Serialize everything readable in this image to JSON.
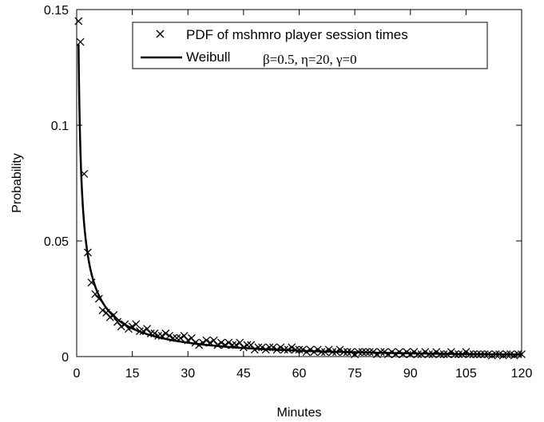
{
  "chart_data": {
    "type": "scatter",
    "xlabel": "Minutes",
    "ylabel": "Probability",
    "xlim": [
      0,
      120
    ],
    "ylim": [
      0,
      0.15
    ],
    "xticks": [
      0,
      15,
      30,
      45,
      60,
      75,
      90,
      105,
      120
    ],
    "yticks": [
      {
        "value": 0,
        "label": "0"
      },
      {
        "value": 0.05,
        "label": "0.05"
      },
      {
        "value": 0.1,
        "label": "0.1"
      },
      {
        "value": 0.15,
        "label": "0.15"
      }
    ],
    "grid": false,
    "legend_position": "top-right",
    "series": [
      {
        "name": "PDF of mshmro player session times",
        "style": "x-marker",
        "points": [
          [
            0.5,
            0.145
          ],
          [
            1,
            0.136
          ],
          [
            2,
            0.079
          ],
          [
            3,
            0.045
          ],
          [
            4,
            0.032
          ],
          [
            5,
            0.027
          ],
          [
            6,
            0.025
          ],
          [
            7,
            0.02
          ],
          [
            8,
            0.019
          ],
          [
            9,
            0.017
          ],
          [
            10,
            0.018
          ],
          [
            11,
            0.015
          ],
          [
            12,
            0.013
          ],
          [
            13,
            0.014
          ],
          [
            14,
            0.012
          ],
          [
            15,
            0.013
          ],
          [
            16,
            0.014
          ],
          [
            17,
            0.011
          ],
          [
            18,
            0.011
          ],
          [
            19,
            0.012
          ],
          [
            20,
            0.01
          ],
          [
            21,
            0.01
          ],
          [
            22,
            0.009
          ],
          [
            23,
            0.009
          ],
          [
            24,
            0.01
          ],
          [
            25,
            0.009
          ],
          [
            26,
            0.008
          ],
          [
            27,
            0.008
          ],
          [
            28,
            0.008
          ],
          [
            29,
            0.009
          ],
          [
            30,
            0.007
          ],
          [
            31,
            0.008
          ],
          [
            32,
            0.006
          ],
          [
            33,
            0.005
          ],
          [
            34,
            0.006
          ],
          [
            35,
            0.007
          ],
          [
            36,
            0.006
          ],
          [
            37,
            0.007
          ],
          [
            38,
            0.005
          ],
          [
            39,
            0.006
          ],
          [
            40,
            0.005
          ],
          [
            41,
            0.006
          ],
          [
            42,
            0.005
          ],
          [
            43,
            0.005
          ],
          [
            44,
            0.006
          ],
          [
            45,
            0.004
          ],
          [
            46,
            0.005
          ],
          [
            47,
            0.005
          ],
          [
            48,
            0.003
          ],
          [
            49,
            0.004
          ],
          [
            50,
            0.004
          ],
          [
            51,
            0.003
          ],
          [
            52,
            0.004
          ],
          [
            53,
            0.004
          ],
          [
            54,
            0.003
          ],
          [
            55,
            0.004
          ],
          [
            56,
            0.003
          ],
          [
            57,
            0.003
          ],
          [
            58,
            0.004
          ],
          [
            59,
            0.003
          ],
          [
            60,
            0.003
          ],
          [
            61,
            0.003
          ],
          [
            62,
            0.002
          ],
          [
            63,
            0.003
          ],
          [
            64,
            0.002
          ],
          [
            65,
            0.003
          ],
          [
            66,
            0.002
          ],
          [
            67,
            0.002
          ],
          [
            68,
            0.003
          ],
          [
            69,
            0.002
          ],
          [
            70,
            0.002
          ],
          [
            71,
            0.003
          ],
          [
            72,
            0.002
          ],
          [
            73,
            0.002
          ],
          [
            74,
            0.002
          ],
          [
            75,
            0.001
          ],
          [
            76,
            0.002
          ],
          [
            77,
            0.002
          ],
          [
            78,
            0.002
          ],
          [
            79,
            0.002
          ],
          [
            80,
            0.002
          ],
          [
            81,
            0.001
          ],
          [
            82,
            0.002
          ],
          [
            83,
            0.002
          ],
          [
            84,
            0.001
          ],
          [
            85,
            0.002
          ],
          [
            86,
            0.001
          ],
          [
            87,
            0.002
          ],
          [
            88,
            0.001
          ],
          [
            89,
            0.002
          ],
          [
            90,
            0.001
          ],
          [
            91,
            0.002
          ],
          [
            92,
            0.001
          ],
          [
            93,
            0.001
          ],
          [
            94,
            0.002
          ],
          [
            95,
            0.001
          ],
          [
            96,
            0.001
          ],
          [
            97,
            0.002
          ],
          [
            98,
            0.001
          ],
          [
            99,
            0.001
          ],
          [
            100,
            0.001
          ],
          [
            101,
            0.002
          ],
          [
            102,
            0.001
          ],
          [
            103,
            0.001
          ],
          [
            104,
            0.001
          ],
          [
            105,
            0.002
          ],
          [
            106,
            0.001
          ],
          [
            107,
            0.001
          ],
          [
            108,
            0.001
          ],
          [
            109,
            0.001
          ],
          [
            110,
            0.001
          ],
          [
            111,
            0.001
          ],
          [
            112,
            0.0005
          ],
          [
            113,
            0.001
          ],
          [
            114,
            0.001
          ],
          [
            115,
            0.0005
          ],
          [
            116,
            0.001
          ],
          [
            117,
            0.001
          ],
          [
            118,
            0.0005
          ],
          [
            119,
            0.001
          ],
          [
            120,
            0.001
          ]
        ]
      },
      {
        "name": "Weibull",
        "params_text": "β=0.5, η=20, γ=0",
        "style": "solid-line",
        "distribution": {
          "family": "weibull",
          "beta": 0.5,
          "eta": 20,
          "gamma": 0
        }
      }
    ]
  }
}
